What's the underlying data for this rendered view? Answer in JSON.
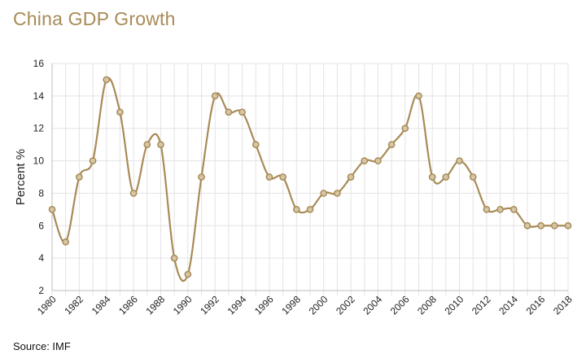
{
  "title": "China GDP Growth",
  "source": "Source: IMF",
  "colors": {
    "title": "#a88b57",
    "line": "#a88b57",
    "point_fill": "#d6c6a6"
  },
  "chart_data": {
    "type": "line",
    "title": "China GDP Growth",
    "xlabel": "",
    "ylabel": "Percent %",
    "ylim": [
      2,
      16
    ],
    "yticks": [
      2,
      4,
      6,
      8,
      10,
      12,
      14,
      16
    ],
    "xlim": [
      1980,
      2018
    ],
    "xticks": [
      "1980",
      "1982",
      "1984",
      "1986",
      "1988",
      "1990",
      "1992",
      "1994",
      "1996",
      "1998",
      "2000",
      "2002",
      "2004",
      "2006",
      "2008",
      "2010",
      "2012",
      "2014",
      "2016",
      "2018"
    ],
    "grid": true,
    "legend": "none",
    "x": [
      1980,
      1981,
      1982,
      1983,
      1984,
      1985,
      1986,
      1987,
      1988,
      1989,
      1990,
      1991,
      1992,
      1993,
      1994,
      1995,
      1996,
      1997,
      1998,
      1999,
      2000,
      2001,
      2002,
      2003,
      2004,
      2005,
      2006,
      2007,
      2008,
      2009,
      2010,
      2011,
      2012,
      2013,
      2014,
      2015,
      2016,
      2017,
      2018
    ],
    "series": [
      {
        "values": [
          7,
          5,
          9,
          10,
          15,
          13,
          8,
          11,
          11,
          4,
          3,
          9,
          14,
          13,
          13,
          11,
          9,
          9,
          7,
          7,
          8,
          8,
          9,
          10,
          10,
          11,
          12,
          14,
          9,
          9,
          10,
          9,
          7,
          7,
          7,
          6,
          6,
          6,
          6
        ]
      }
    ]
  }
}
